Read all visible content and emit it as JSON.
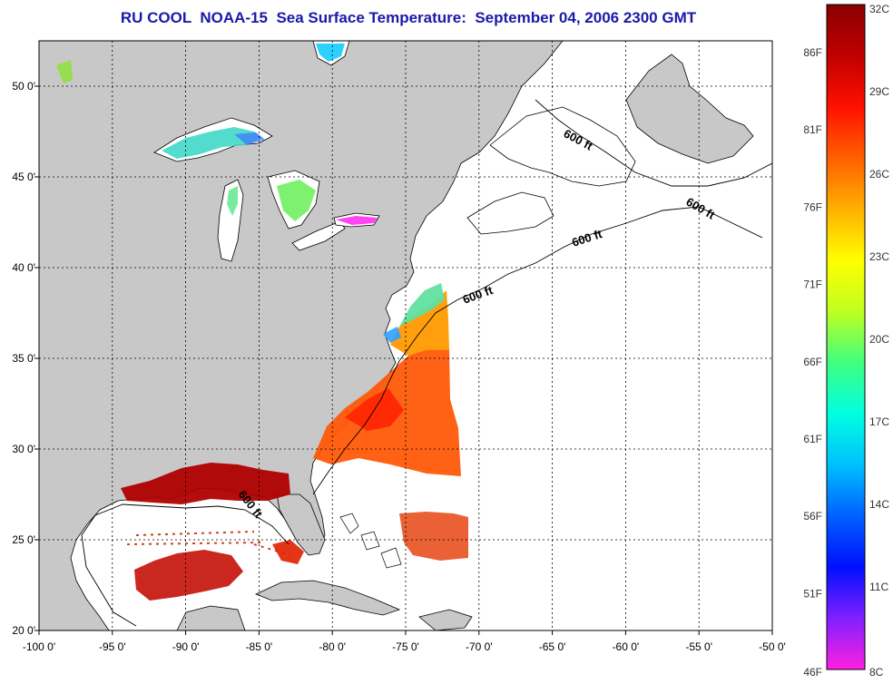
{
  "title": "RU COOL  NOAA-15  Sea Surface Temperature:  September 04, 2006 2300 GMT",
  "map": {
    "lon_range": [
      -100,
      -50
    ],
    "lat_range": [
      20,
      52.5
    ],
    "lon_ticks": [
      "-100 0'",
      "-95 0'",
      "-90 0'",
      "-85 0'",
      "-80 0'",
      "-75 0'",
      "-70 0'",
      "-65 0'",
      "-60 0'",
      "-55 0'",
      "-50 0'"
    ],
    "lat_ticks": [
      "20 0'",
      "25 0'",
      "30 0'",
      "35 0'",
      "40 0'",
      "45 0'",
      "50 0'"
    ],
    "contour_labels": [
      "600 ft",
      "600 ft",
      "600 ft",
      "600 ft",
      "600 ft"
    ],
    "colors": {
      "land": "#c8c8c8",
      "ocean_nodata": "#ffffff",
      "title": "#1a1aa8"
    }
  },
  "colorbar": {
    "fahrenheit_labels": [
      "86F",
      "81F",
      "76F",
      "71F",
      "66F",
      "61F",
      "56F",
      "51F",
      "46F"
    ],
    "celsius_labels": [
      "32C",
      "29C",
      "26C",
      "23C",
      "20C",
      "17C",
      "14C",
      "11C",
      "8C"
    ],
    "gradient_stops": [
      "#ff20e0",
      "#8020ff",
      "#0010ff",
      "#0060ff",
      "#00c0ff",
      "#00ffe0",
      "#40ff80",
      "#c0ff20",
      "#ffff00",
      "#ffb000",
      "#ff6000",
      "#ff1000",
      "#c00000",
      "#8a0000"
    ]
  }
}
